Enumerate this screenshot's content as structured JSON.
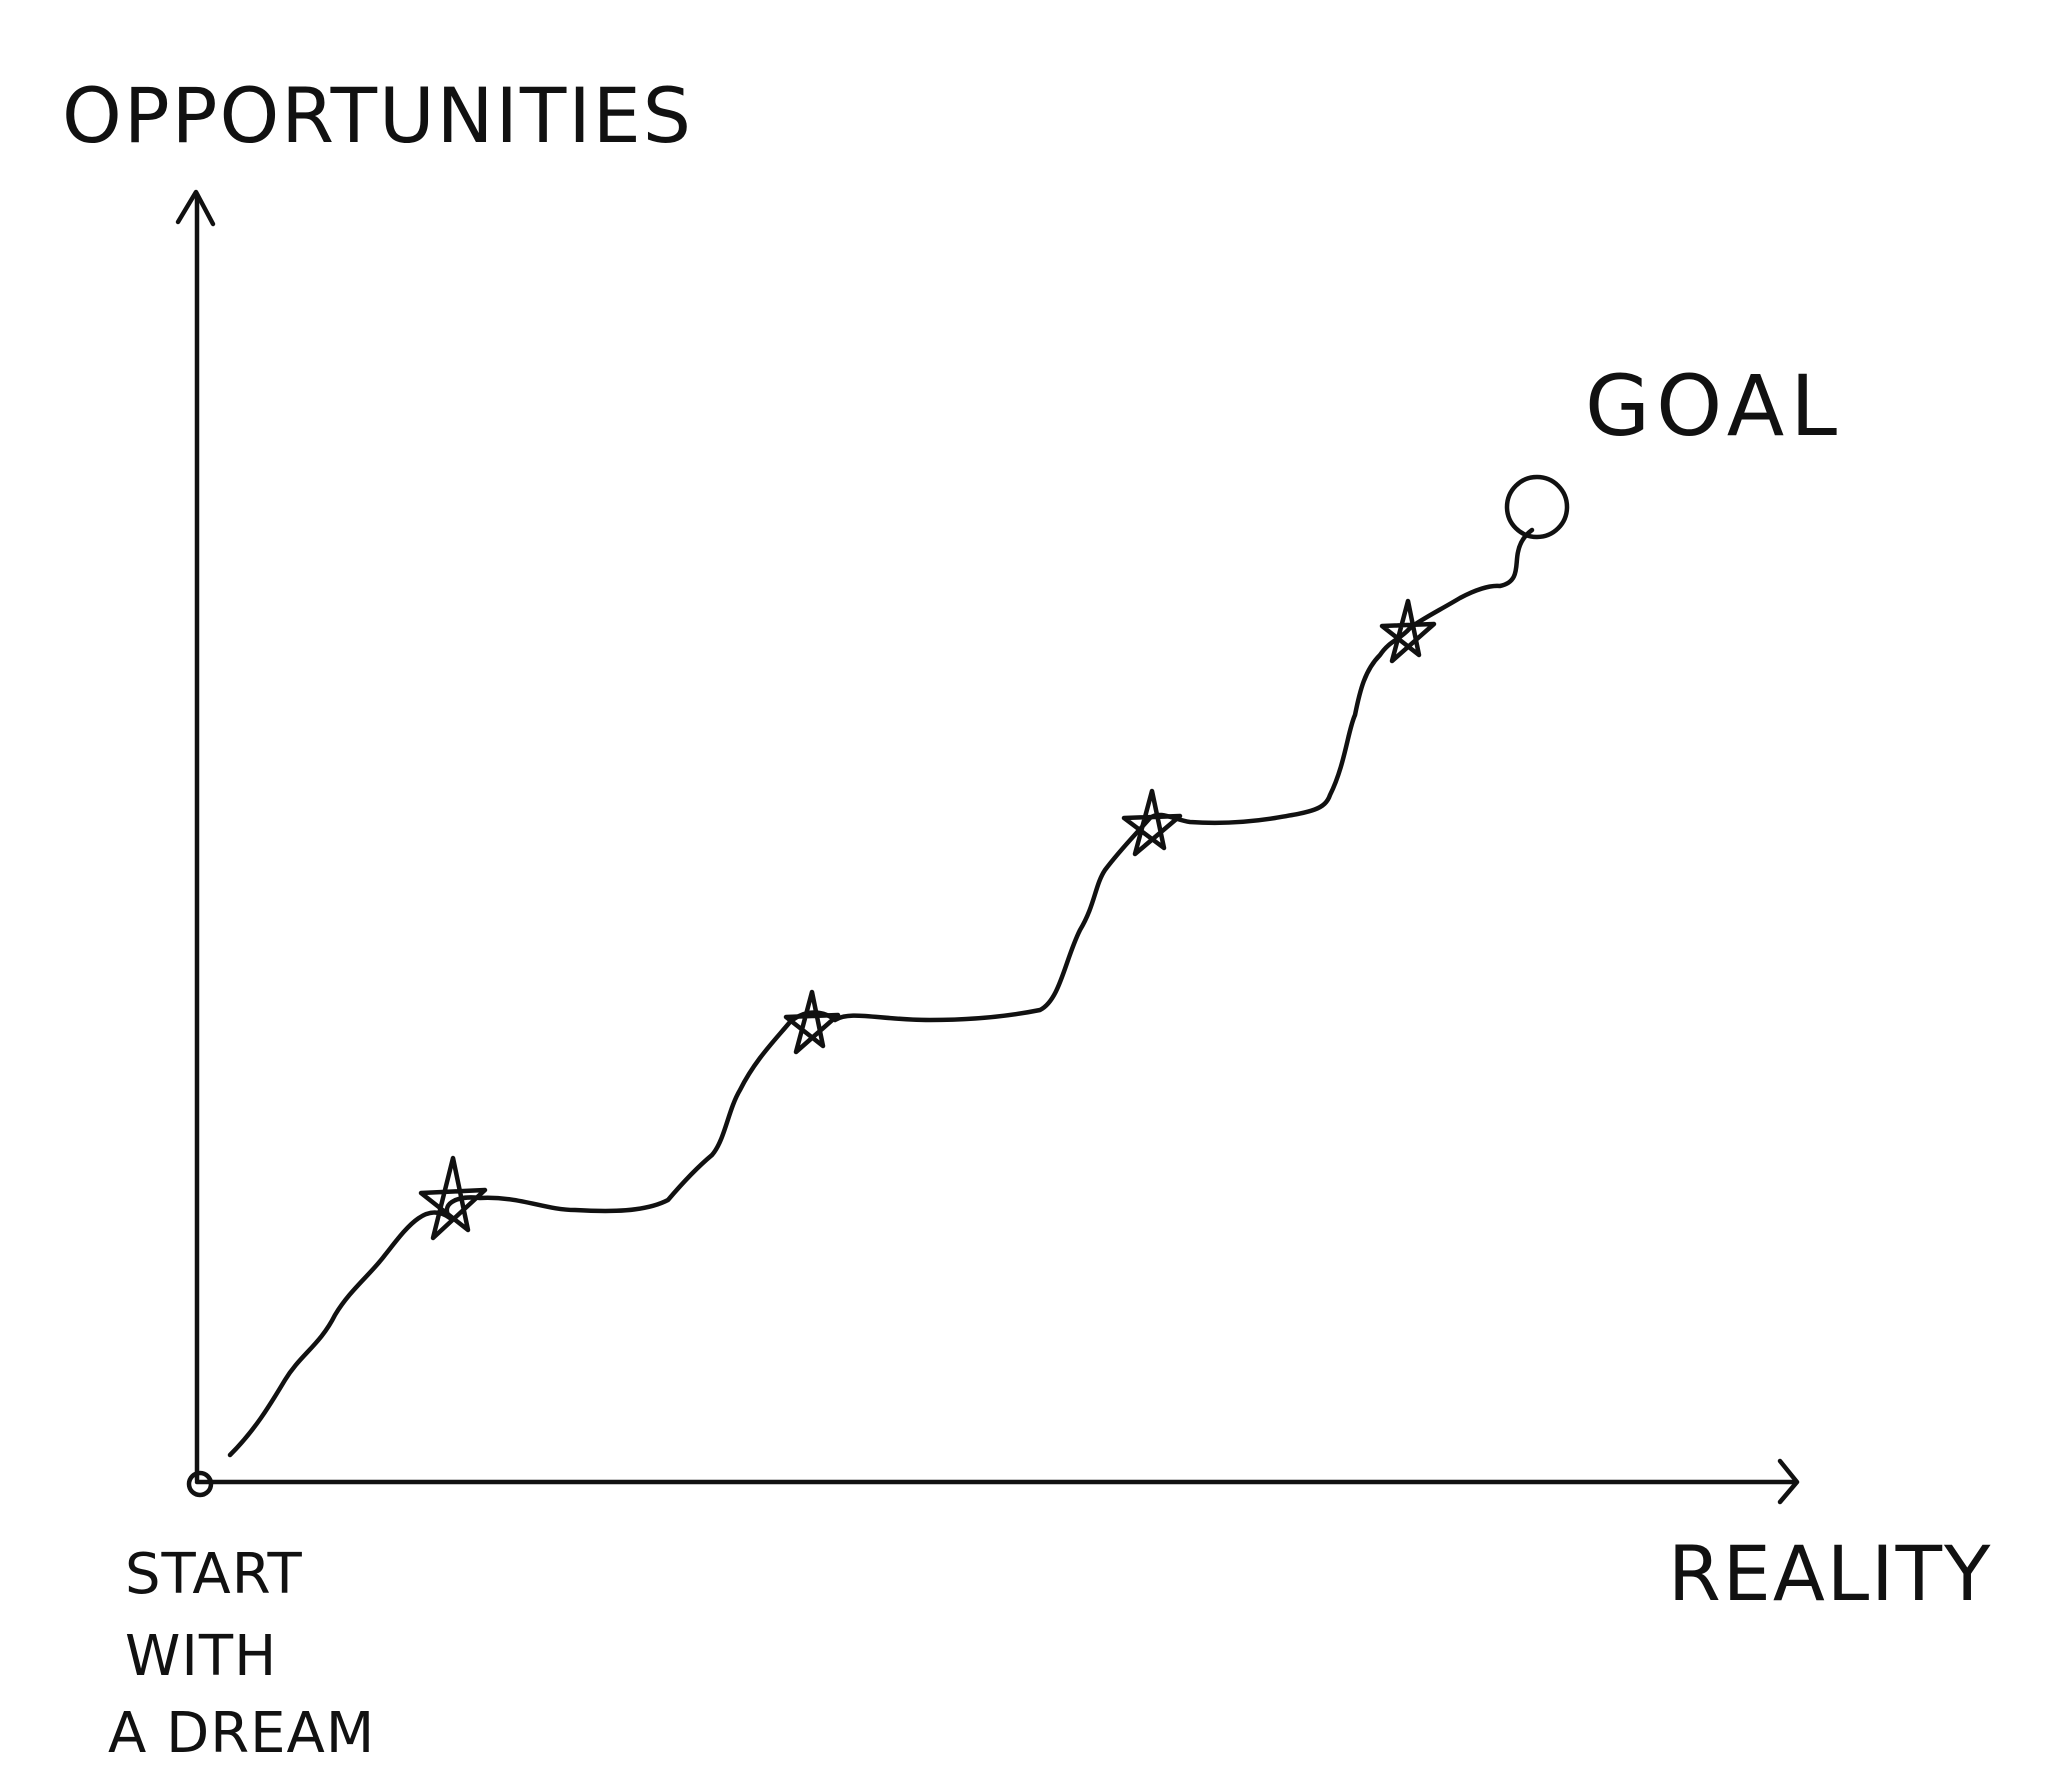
{
  "diagram": {
    "y_axis_label": "OPPORTUNITIES",
    "x_axis_label": "REALITY",
    "goal_label": "GOAL",
    "start_label": [
      "START",
      "WITH",
      "A DREAM"
    ],
    "milestone_count": 4,
    "line_color": "#111111",
    "background": "#ffffff"
  }
}
